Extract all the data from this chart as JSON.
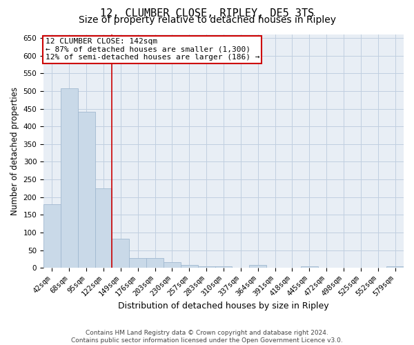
{
  "title": "12, CLUMBER CLOSE, RIPLEY, DE5 3TS",
  "subtitle": "Size of property relative to detached houses in Ripley",
  "xlabel": "Distribution of detached houses by size in Ripley",
  "ylabel": "Number of detached properties",
  "categories": [
    "42sqm",
    "68sqm",
    "95sqm",
    "122sqm",
    "149sqm",
    "176sqm",
    "203sqm",
    "230sqm",
    "257sqm",
    "283sqm",
    "310sqm",
    "337sqm",
    "364sqm",
    "391sqm",
    "418sqm",
    "445sqm",
    "472sqm",
    "498sqm",
    "525sqm",
    "552sqm",
    "579sqm"
  ],
  "values": [
    180,
    508,
    442,
    225,
    83,
    28,
    28,
    15,
    8,
    5,
    5,
    0,
    8,
    0,
    0,
    5,
    0,
    0,
    0,
    0,
    5
  ],
  "bar_color": "#c9d9e8",
  "bar_edge_color": "#a0b8d0",
  "annotation_text_line1": "12 CLUMBER CLOSE: 142sqm",
  "annotation_text_line2": "← 87% of detached houses are smaller (1,300)",
  "annotation_text_line3": "12% of semi-detached houses are larger (186) →",
  "annotation_box_color": "#ffffff",
  "annotation_box_edge_color": "#cc0000",
  "vline_color": "#cc0000",
  "vline_x": 3.5,
  "grid_color": "#c0cfe0",
  "background_color": "#e8eef5",
  "ylim": [
    0,
    660
  ],
  "yticks": [
    0,
    50,
    100,
    150,
    200,
    250,
    300,
    350,
    400,
    450,
    500,
    550,
    600,
    650
  ],
  "footer_line1": "Contains HM Land Registry data © Crown copyright and database right 2024.",
  "footer_line2": "Contains public sector information licensed under the Open Government Licence v3.0.",
  "title_fontsize": 11,
  "subtitle_fontsize": 10,
  "xlabel_fontsize": 9,
  "ylabel_fontsize": 8.5,
  "tick_fontsize": 7.5,
  "annotation_fontsize": 8,
  "footer_fontsize": 6.5
}
